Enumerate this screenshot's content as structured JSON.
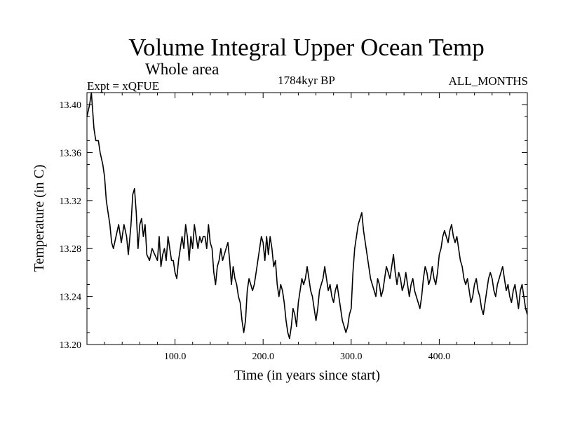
{
  "chart_data": {
    "type": "line",
    "title": "Volume Integral Upper Ocean Temp",
    "subtitle": "Whole area",
    "experiment": "Expt = xQFUE",
    "period": "1784kyr BP",
    "season": "ALL_MONTHS",
    "xlabel": "Time (in years since start)",
    "ylabel": "Temperature (in C)",
    "xlim": [
      0,
      500
    ],
    "ylim": [
      13.2,
      13.41
    ],
    "xticks": [
      100,
      200,
      300,
      400
    ],
    "xtick_labels": [
      "100.0",
      "200.0",
      "300.0",
      "400.0"
    ],
    "yticks": [
      13.2,
      13.24,
      13.28,
      13.32,
      13.36,
      13.4
    ],
    "ytick_labels": [
      "13.20",
      "13.24",
      "13.28",
      "13.32",
      "13.36",
      "13.40"
    ],
    "grid": false,
    "series": [
      {
        "name": "Volume Integral Upper Ocean Temp",
        "color": "#000000",
        "points": [
          [
            0,
            13.39
          ],
          [
            3,
            13.4
          ],
          [
            5,
            13.41
          ],
          [
            8,
            13.38
          ],
          [
            10,
            13.37
          ],
          [
            13,
            13.37
          ],
          [
            15,
            13.36
          ],
          [
            18,
            13.35
          ],
          [
            20,
            13.34
          ],
          [
            22,
            13.32
          ],
          [
            24,
            13.31
          ],
          [
            26,
            13.3
          ],
          [
            28,
            13.285
          ],
          [
            30,
            13.28
          ],
          [
            33,
            13.29
          ],
          [
            36,
            13.3
          ],
          [
            39,
            13.285
          ],
          [
            42,
            13.3
          ],
          [
            45,
            13.29
          ],
          [
            47,
            13.275
          ],
          [
            50,
            13.3
          ],
          [
            52,
            13.325
          ],
          [
            54,
            13.33
          ],
          [
            56,
            13.31
          ],
          [
            58,
            13.28
          ],
          [
            60,
            13.3
          ],
          [
            62,
            13.305
          ],
          [
            64,
            13.29
          ],
          [
            66,
            13.3
          ],
          [
            68,
            13.275
          ],
          [
            71,
            13.27
          ],
          [
            74,
            13.28
          ],
          [
            77,
            13.275
          ],
          [
            80,
            13.27
          ],
          [
            82,
            13.29
          ],
          [
            84,
            13.265
          ],
          [
            86,
            13.275
          ],
          [
            88,
            13.28
          ],
          [
            90,
            13.27
          ],
          [
            92,
            13.29
          ],
          [
            94,
            13.28
          ],
          [
            96,
            13.27
          ],
          [
            98,
            13.27
          ],
          [
            100,
            13.26
          ],
          [
            102,
            13.255
          ],
          [
            104,
            13.27
          ],
          [
            106,
            13.28
          ],
          [
            108,
            13.29
          ],
          [
            110,
            13.28
          ],
          [
            112,
            13.3
          ],
          [
            114,
            13.29
          ],
          [
            116,
            13.27
          ],
          [
            118,
            13.29
          ],
          [
            120,
            13.28
          ],
          [
            122,
            13.3
          ],
          [
            124,
            13.29
          ],
          [
            126,
            13.28
          ],
          [
            128,
            13.29
          ],
          [
            130,
            13.285
          ],
          [
            132,
            13.29
          ],
          [
            134,
            13.29
          ],
          [
            136,
            13.28
          ],
          [
            138,
            13.3
          ],
          [
            140,
            13.285
          ],
          [
            142,
            13.28
          ],
          [
            144,
            13.26
          ],
          [
            146,
            13.25
          ],
          [
            148,
            13.265
          ],
          [
            150,
            13.27
          ],
          [
            152,
            13.28
          ],
          [
            154,
            13.27
          ],
          [
            156,
            13.275
          ],
          [
            158,
            13.28
          ],
          [
            160,
            13.285
          ],
          [
            162,
            13.27
          ],
          [
            164,
            13.25
          ],
          [
            166,
            13.265
          ],
          [
            168,
            13.255
          ],
          [
            170,
            13.25
          ],
          [
            172,
            13.24
          ],
          [
            174,
            13.235
          ],
          [
            176,
            13.22
          ],
          [
            178,
            13.21
          ],
          [
            180,
            13.22
          ],
          [
            182,
            13.245
          ],
          [
            184,
            13.255
          ],
          [
            186,
            13.25
          ],
          [
            188,
            13.245
          ],
          [
            190,
            13.25
          ],
          [
            192,
            13.26
          ],
          [
            194,
            13.27
          ],
          [
            196,
            13.28
          ],
          [
            198,
            13.29
          ],
          [
            200,
            13.285
          ],
          [
            202,
            13.27
          ],
          [
            204,
            13.29
          ],
          [
            206,
            13.275
          ],
          [
            208,
            13.29
          ],
          [
            210,
            13.28
          ],
          [
            212,
            13.265
          ],
          [
            214,
            13.27
          ],
          [
            216,
            13.25
          ],
          [
            218,
            13.24
          ],
          [
            220,
            13.25
          ],
          [
            222,
            13.245
          ],
          [
            224,
            13.235
          ],
          [
            226,
            13.22
          ],
          [
            228,
            13.21
          ],
          [
            230,
            13.205
          ],
          [
            232,
            13.215
          ],
          [
            234,
            13.23
          ],
          [
            236,
            13.225
          ],
          [
            238,
            13.215
          ],
          [
            240,
            13.235
          ],
          [
            242,
            13.245
          ],
          [
            244,
            13.255
          ],
          [
            246,
            13.25
          ],
          [
            248,
            13.255
          ],
          [
            250,
            13.265
          ],
          [
            252,
            13.255
          ],
          [
            254,
            13.245
          ],
          [
            256,
            13.24
          ],
          [
            258,
            13.23
          ],
          [
            260,
            13.22
          ],
          [
            262,
            13.23
          ],
          [
            264,
            13.245
          ],
          [
            266,
            13.25
          ],
          [
            268,
            13.255
          ],
          [
            270,
            13.265
          ],
          [
            272,
            13.255
          ],
          [
            274,
            13.245
          ],
          [
            276,
            13.25
          ],
          [
            278,
            13.24
          ],
          [
            280,
            13.235
          ],
          [
            282,
            13.245
          ],
          [
            284,
            13.25
          ],
          [
            286,
            13.24
          ],
          [
            288,
            13.23
          ],
          [
            290,
            13.22
          ],
          [
            292,
            13.215
          ],
          [
            294,
            13.21
          ],
          [
            296,
            13.215
          ],
          [
            298,
            13.225
          ],
          [
            300,
            13.23
          ],
          [
            302,
            13.26
          ],
          [
            304,
            13.28
          ],
          [
            306,
            13.29
          ],
          [
            308,
            13.3
          ],
          [
            310,
            13.305
          ],
          [
            312,
            13.31
          ],
          [
            314,
            13.295
          ],
          [
            316,
            13.285
          ],
          [
            318,
            13.275
          ],
          [
            320,
            13.265
          ],
          [
            322,
            13.255
          ],
          [
            324,
            13.25
          ],
          [
            326,
            13.245
          ],
          [
            328,
            13.24
          ],
          [
            330,
            13.255
          ],
          [
            332,
            13.25
          ],
          [
            334,
            13.24
          ],
          [
            336,
            13.245
          ],
          [
            338,
            13.255
          ],
          [
            340,
            13.265
          ],
          [
            342,
            13.26
          ],
          [
            344,
            13.255
          ],
          [
            346,
            13.265
          ],
          [
            348,
            13.275
          ],
          [
            350,
            13.26
          ],
          [
            352,
            13.25
          ],
          [
            354,
            13.26
          ],
          [
            356,
            13.255
          ],
          [
            358,
            13.245
          ],
          [
            360,
            13.25
          ],
          [
            362,
            13.26
          ],
          [
            364,
            13.25
          ],
          [
            366,
            13.24
          ],
          [
            368,
            13.25
          ],
          [
            370,
            13.255
          ],
          [
            372,
            13.245
          ],
          [
            374,
            13.24
          ],
          [
            376,
            13.235
          ],
          [
            378,
            13.23
          ],
          [
            380,
            13.24
          ],
          [
            382,
            13.255
          ],
          [
            384,
            13.265
          ],
          [
            386,
            13.26
          ],
          [
            388,
            13.25
          ],
          [
            390,
            13.255
          ],
          [
            392,
            13.265
          ],
          [
            394,
            13.255
          ],
          [
            396,
            13.25
          ],
          [
            398,
            13.26
          ],
          [
            400,
            13.275
          ],
          [
            402,
            13.28
          ],
          [
            404,
            13.29
          ],
          [
            406,
            13.295
          ],
          [
            408,
            13.29
          ],
          [
            410,
            13.285
          ],
          [
            412,
            13.295
          ],
          [
            414,
            13.3
          ],
          [
            416,
            13.29
          ],
          [
            418,
            13.285
          ],
          [
            420,
            13.29
          ],
          [
            422,
            13.28
          ],
          [
            424,
            13.27
          ],
          [
            426,
            13.265
          ],
          [
            428,
            13.255
          ],
          [
            430,
            13.25
          ],
          [
            432,
            13.255
          ],
          [
            434,
            13.245
          ],
          [
            436,
            13.235
          ],
          [
            438,
            13.24
          ],
          [
            440,
            13.25
          ],
          [
            442,
            13.255
          ],
          [
            444,
            13.245
          ],
          [
            446,
            13.24
          ],
          [
            448,
            13.23
          ],
          [
            450,
            13.225
          ],
          [
            452,
            13.235
          ],
          [
            454,
            13.245
          ],
          [
            456,
            13.255
          ],
          [
            458,
            13.26
          ],
          [
            460,
            13.255
          ],
          [
            462,
            13.245
          ],
          [
            464,
            13.24
          ],
          [
            466,
            13.25
          ],
          [
            468,
            13.255
          ],
          [
            470,
            13.26
          ],
          [
            472,
            13.265
          ],
          [
            474,
            13.255
          ],
          [
            476,
            13.245
          ],
          [
            478,
            13.25
          ],
          [
            480,
            13.24
          ],
          [
            482,
            13.235
          ],
          [
            484,
            13.245
          ],
          [
            486,
            13.25
          ],
          [
            488,
            13.24
          ],
          [
            490,
            13.23
          ],
          [
            492,
            13.245
          ],
          [
            494,
            13.25
          ],
          [
            496,
            13.24
          ],
          [
            498,
            13.23
          ],
          [
            500,
            13.225
          ]
        ]
      }
    ]
  }
}
